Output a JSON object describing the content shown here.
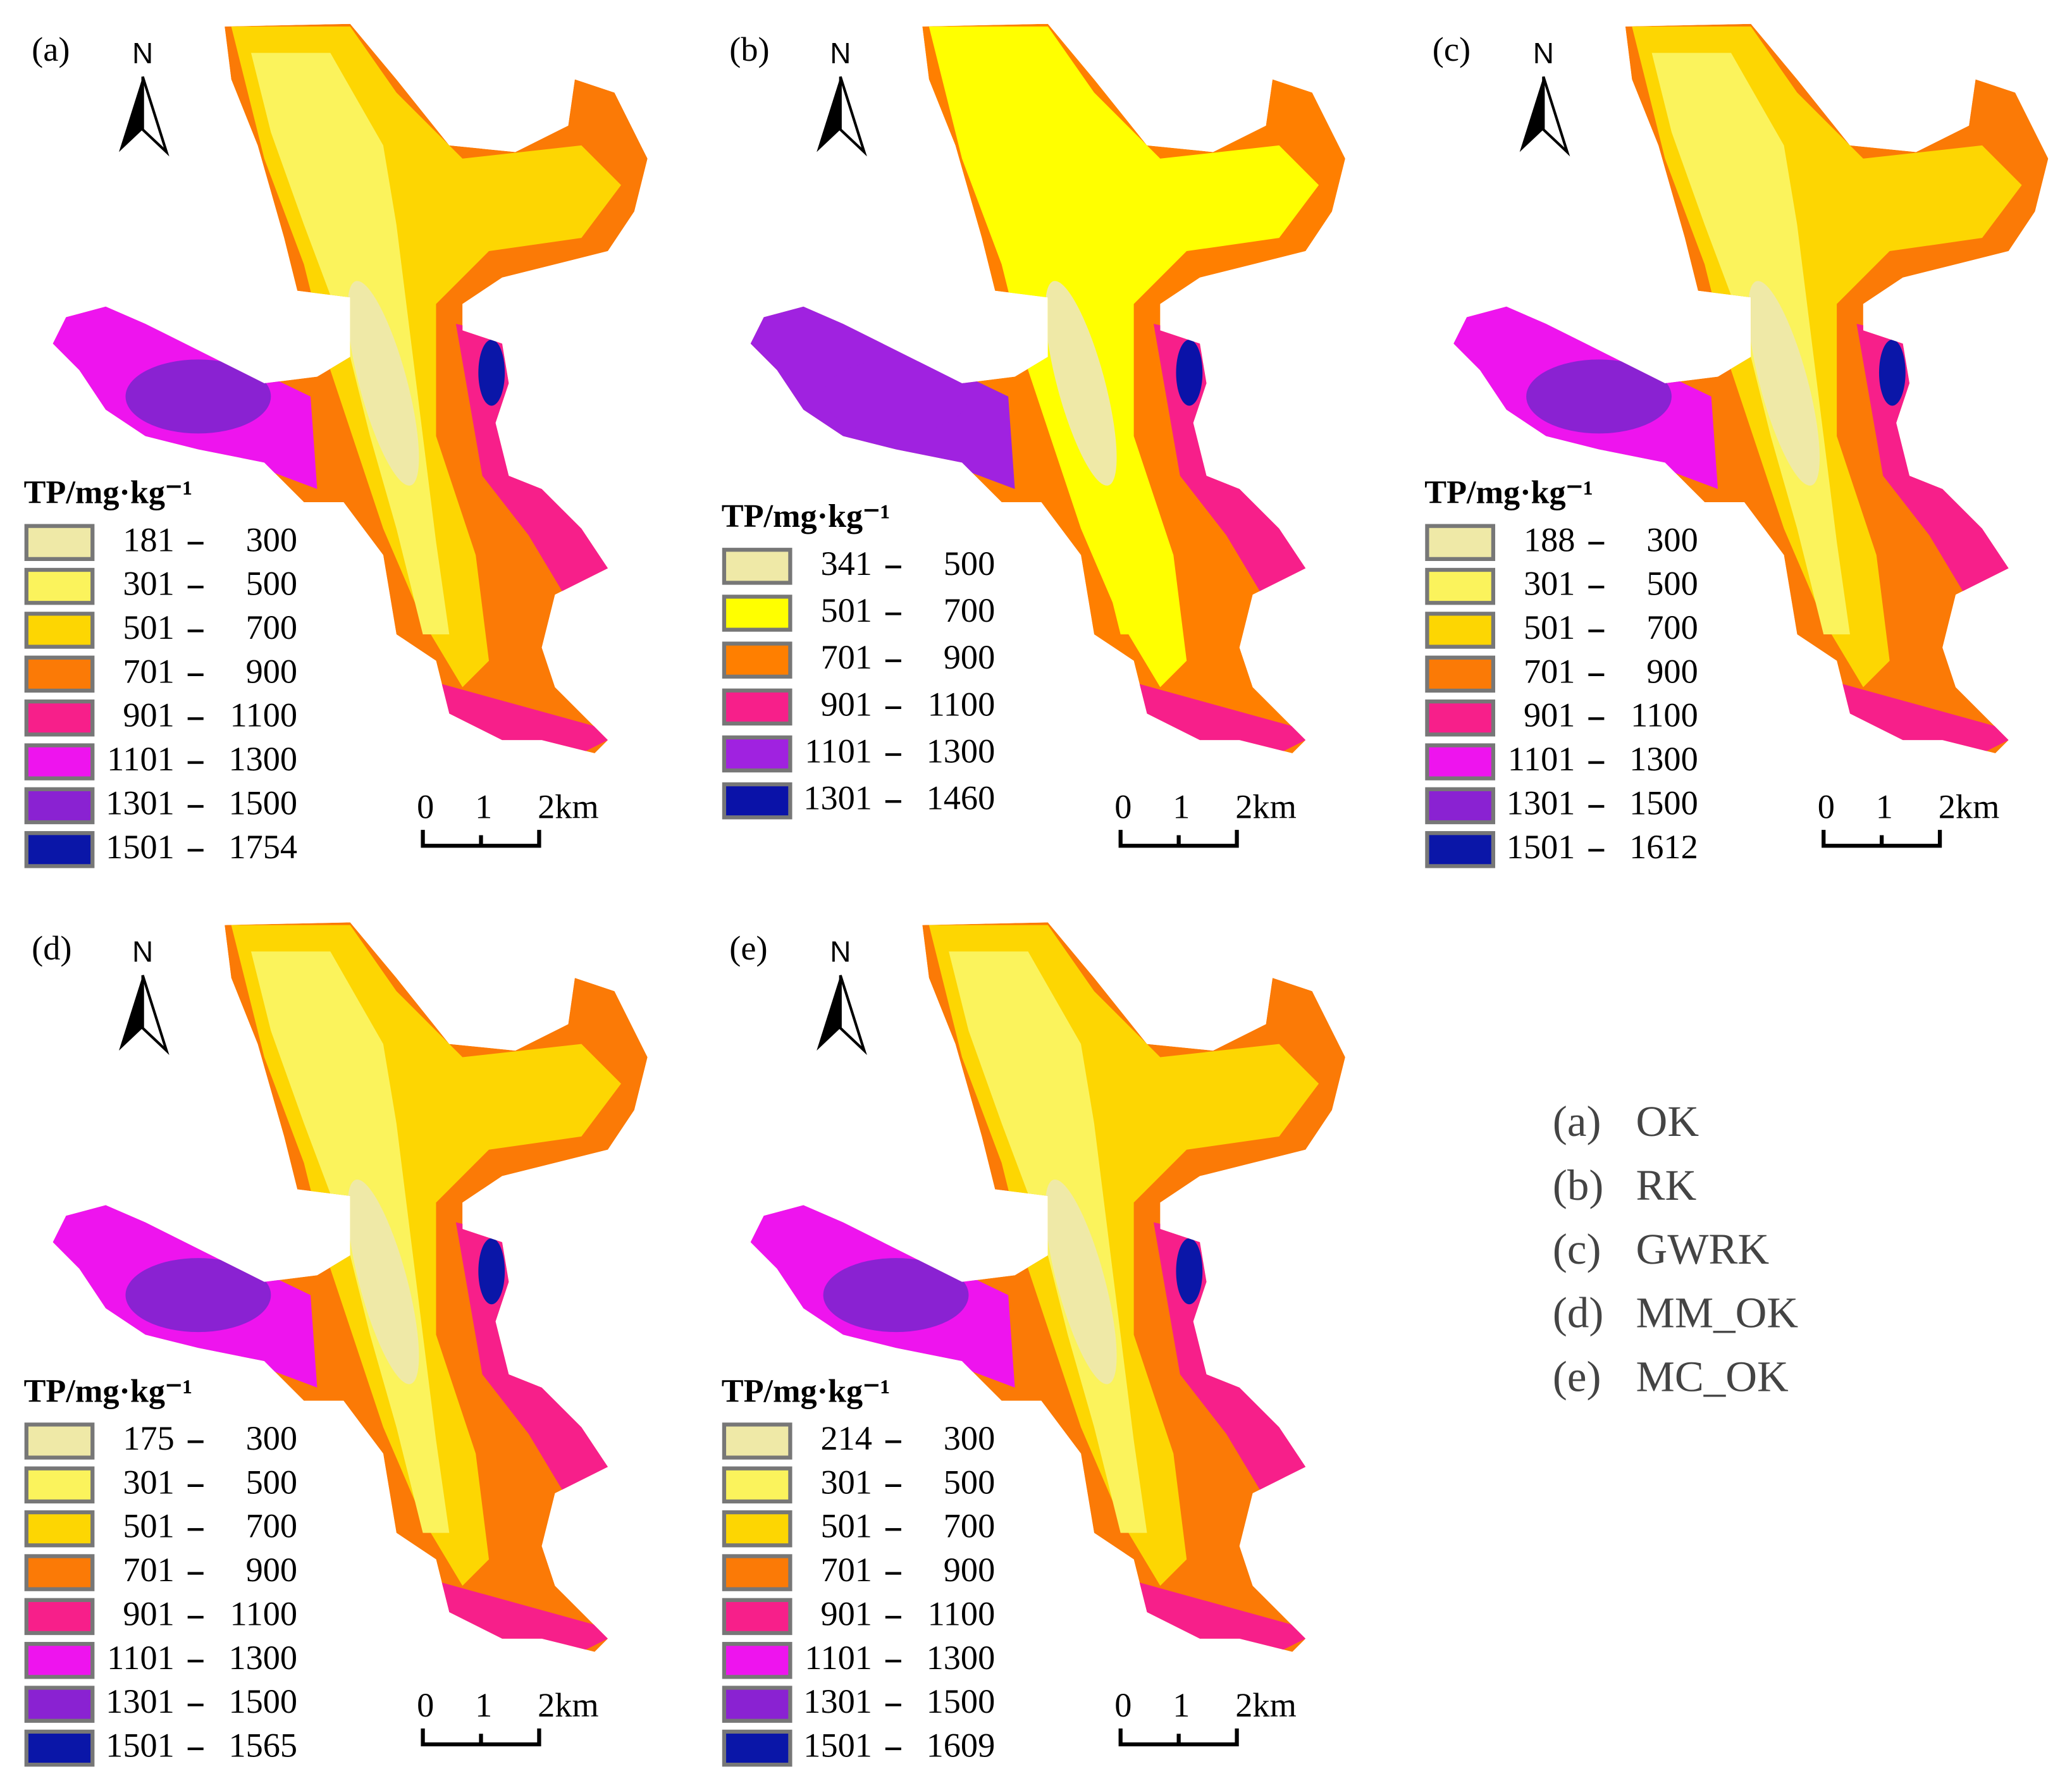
{
  "panels": [
    {
      "label": "(a)",
      "north": "N",
      "legend_title": "TP/mg·kg⁻¹",
      "scale_labels": [
        "0",
        "1",
        "2km"
      ],
      "legend": [
        {
          "from": "181",
          "to": "300",
          "color": "#efe9a7"
        },
        {
          "from": "301",
          "to": "500",
          "color": "#fbf35c"
        },
        {
          "from": "501",
          "to": "700",
          "color": "#fdd602"
        },
        {
          "from": "701",
          "to": "900",
          "color": "#fb7a06"
        },
        {
          "from": "901",
          "to": "1100",
          "color": "#f71f8a"
        },
        {
          "from": "1101",
          "to": "1300",
          "color": "#ee14ee"
        },
        {
          "from": "1301",
          "to": "1500",
          "color": "#8a22d2"
        },
        {
          "from": "1501",
          "to": "1754",
          "color": "#0a16a8"
        }
      ]
    },
    {
      "label": "(b)",
      "north": "N",
      "legend_title": "TP/mg·kg⁻¹",
      "scale_labels": [
        "0",
        "1",
        "2km"
      ],
      "legend": [
        {
          "from": "341",
          "to": "500",
          "color": "#efe9a7"
        },
        {
          "from": "501",
          "to": "700",
          "color": "#ffff00"
        },
        {
          "from": "701",
          "to": "900",
          "color": "#ff7f00"
        },
        {
          "from": "901",
          "to": "1100",
          "color": "#f71f8a"
        },
        {
          "from": "1101",
          "to": "1300",
          "color": "#a022e0"
        },
        {
          "from": "1301",
          "to": "1460",
          "color": "#0a12a8"
        }
      ]
    },
    {
      "label": "(c)",
      "north": "N",
      "legend_title": "TP/mg·kg⁻¹",
      "scale_labels": [
        "0",
        "1",
        "2km"
      ],
      "legend": [
        {
          "from": "188",
          "to": "300",
          "color": "#efe9a7"
        },
        {
          "from": "301",
          "to": "500",
          "color": "#fbf35c"
        },
        {
          "from": "501",
          "to": "700",
          "color": "#fdd602"
        },
        {
          "from": "701",
          "to": "900",
          "color": "#fb7a06"
        },
        {
          "from": "901",
          "to": "1100",
          "color": "#f71f8a"
        },
        {
          "from": "1101",
          "to": "1300",
          "color": "#ee14ee"
        },
        {
          "from": "1301",
          "to": "1500",
          "color": "#8a22d2"
        },
        {
          "from": "1501",
          "to": "1612",
          "color": "#0a16a8"
        }
      ]
    },
    {
      "label": "(d)",
      "north": "N",
      "legend_title": "TP/mg·kg⁻¹",
      "scale_labels": [
        "0",
        "1",
        "2km"
      ],
      "legend": [
        {
          "from": "175",
          "to": "300",
          "color": "#efe9a7"
        },
        {
          "from": "301",
          "to": "500",
          "color": "#fbf35c"
        },
        {
          "from": "501",
          "to": "700",
          "color": "#fdd602"
        },
        {
          "from": "701",
          "to": "900",
          "color": "#fb7a06"
        },
        {
          "from": "901",
          "to": "1100",
          "color": "#f71f8a"
        },
        {
          "from": "1101",
          "to": "1300",
          "color": "#ee14ee"
        },
        {
          "from": "1301",
          "to": "1500",
          "color": "#8a22d2"
        },
        {
          "from": "1501",
          "to": "1565",
          "color": "#0a16a8"
        }
      ]
    },
    {
      "label": "(e)",
      "north": "N",
      "legend_title": "TP/mg·kg⁻¹",
      "scale_labels": [
        "0",
        "1",
        "2km"
      ],
      "legend": [
        {
          "from": "214",
          "to": "300",
          "color": "#efe9a7"
        },
        {
          "from": "301",
          "to": "500",
          "color": "#fbf35c"
        },
        {
          "from": "501",
          "to": "700",
          "color": "#fdd602"
        },
        {
          "from": "701",
          "to": "900",
          "color": "#fb7a06"
        },
        {
          "from": "901",
          "to": "1100",
          "color": "#f71f8a"
        },
        {
          "from": "1101",
          "to": "1300",
          "color": "#ee14ee"
        },
        {
          "from": "1301",
          "to": "1500",
          "color": "#8a22d2"
        },
        {
          "from": "1501",
          "to": "1609",
          "color": "#0a16a8"
        }
      ]
    }
  ],
  "methods": [
    {
      "label": "(a)",
      "name": "OK"
    },
    {
      "label": "(b)",
      "name": "RK"
    },
    {
      "label": "(c)",
      "name": "GWRK"
    },
    {
      "label": "(d)",
      "name": "MM_OK"
    },
    {
      "label": "(e)",
      "name": "MC_OK"
    }
  ]
}
